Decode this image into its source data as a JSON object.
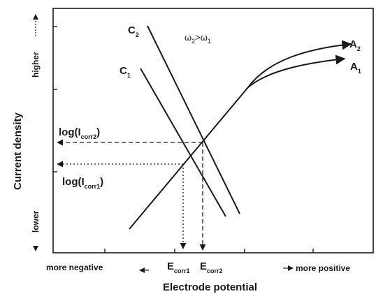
{
  "axes": {
    "x_title": "Electrode potential",
    "y_title": "Current density",
    "x_left_label": "more negative",
    "x_right_label": "more positive",
    "y_top_label": "higher",
    "y_bottom_label": "lower"
  },
  "curves": {
    "cathodic_1": {
      "letter": "C",
      "sub": "1"
    },
    "cathodic_2": {
      "letter": "C",
      "sub": "2"
    },
    "anodic_1": {
      "letter": "A",
      "sub": "1"
    },
    "anodic_2": {
      "letter": "A",
      "sub": "2"
    }
  },
  "condition": {
    "a": "ω",
    "a_sub": "2",
    "op": ">",
    "b": "ω",
    "b_sub": "1"
  },
  "currents": {
    "i_corr2": {
      "prefix": "log(I",
      "sub": "corr2",
      "suffix": ")"
    },
    "i_corr1": {
      "prefix": "log(I",
      "sub": "corr1",
      "suffix": ")"
    }
  },
  "potentials": {
    "e_corr1": {
      "letter": "E",
      "sub": "corr1"
    },
    "e_corr2": {
      "letter": "E",
      "sub": "corr2"
    }
  }
}
